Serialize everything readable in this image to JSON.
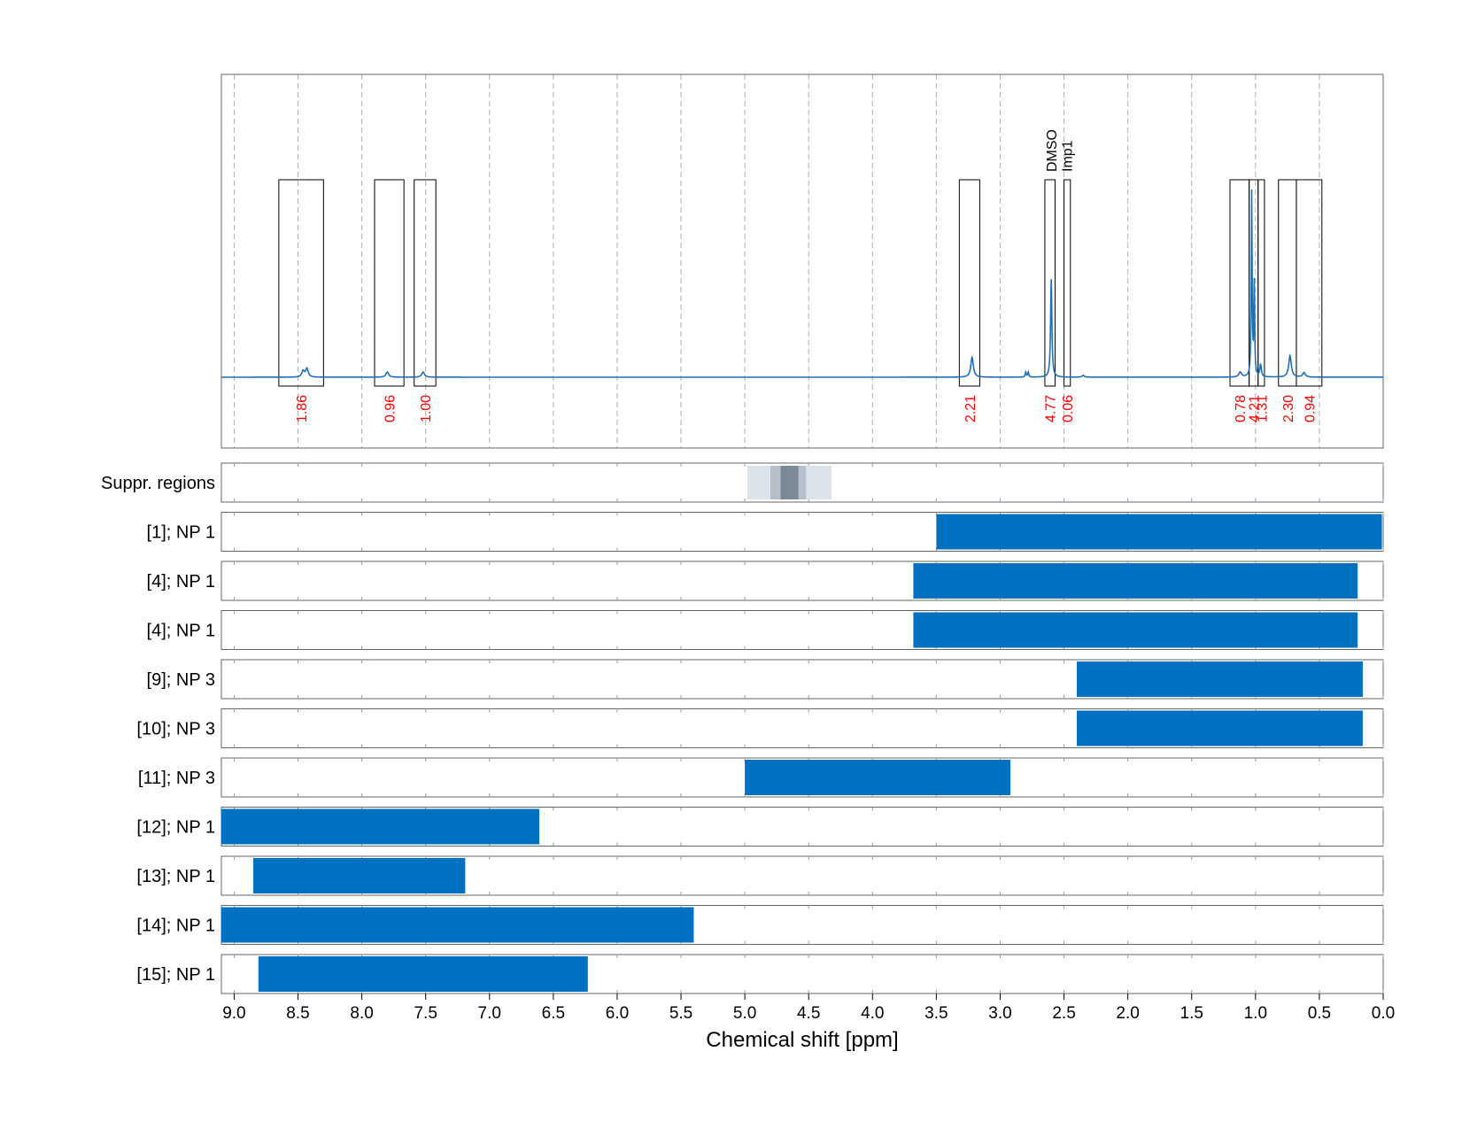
{
  "colors": {
    "spectrum": "#1f6fb4",
    "bar": "#0070c0",
    "integral_label": "#ff0000",
    "frame": "#666666",
    "grid": "#b0b0b0",
    "suppr_light": "#dde3ea",
    "suppr_mid": "#b5c0cb",
    "suppr_dark": "#7b8a96"
  },
  "chart_data": {
    "type": "nmr_spectrum_with_ranges",
    "xlabel": "Chemical shift [ppm]",
    "xlim": [
      9.1,
      0.0
    ],
    "x_ticks": [
      {
        "value": 9.0,
        "label": "9.0"
      },
      {
        "value": 8.5,
        "label": "8.5"
      },
      {
        "value": 8.0,
        "label": "8.0"
      },
      {
        "value": 7.5,
        "label": "7.5"
      },
      {
        "value": 7.0,
        "label": "7.0"
      },
      {
        "value": 6.5,
        "label": "6.5"
      },
      {
        "value": 6.0,
        "label": "6.0"
      },
      {
        "value": 5.5,
        "label": "5.5"
      },
      {
        "value": 5.0,
        "label": "5.0"
      },
      {
        "value": 4.5,
        "label": "4.5"
      },
      {
        "value": 4.0,
        "label": "4.0"
      },
      {
        "value": 3.5,
        "label": "3.5"
      },
      {
        "value": 3.0,
        "label": "3.0"
      },
      {
        "value": 2.5,
        "label": "2.5"
      },
      {
        "value": 2.0,
        "label": "2.0"
      },
      {
        "value": 1.5,
        "label": "1.5"
      },
      {
        "value": 1.0,
        "label": "1.0"
      },
      {
        "value": 0.5,
        "label": "0.5"
      },
      {
        "value": 0.0,
        "label": "0.0"
      }
    ],
    "spectrum": {
      "y_range": [
        -0.22,
        1.0
      ],
      "peaks": [
        {
          "ppm": 8.46,
          "height": 0.02,
          "width": 0.012
        },
        {
          "ppm": 8.43,
          "height": 0.028,
          "width": 0.012
        },
        {
          "ppm": 7.8,
          "height": 0.017,
          "width": 0.013
        },
        {
          "ppm": 7.52,
          "height": 0.017,
          "width": 0.013
        },
        {
          "ppm": 3.22,
          "height": 0.065,
          "width": 0.012
        },
        {
          "ppm": 2.8,
          "height": 0.016,
          "width": 0.005
        },
        {
          "ppm": 2.78,
          "height": 0.016,
          "width": 0.005
        },
        {
          "ppm": 2.6,
          "height": 0.32,
          "width": 0.006
        },
        {
          "ppm": 2.35,
          "height": 0.006,
          "width": 0.01
        },
        {
          "ppm": 1.12,
          "height": 0.016,
          "width": 0.012
        },
        {
          "ppm": 1.03,
          "height": 0.6,
          "width": 0.004
        },
        {
          "ppm": 1.01,
          "height": 0.3,
          "width": 0.004
        },
        {
          "ppm": 0.96,
          "height": 0.04,
          "width": 0.007
        },
        {
          "ppm": 0.73,
          "height": 0.07,
          "width": 0.012
        },
        {
          "ppm": 0.62,
          "height": 0.015,
          "width": 0.012
        }
      ]
    },
    "integration_regions": [
      {
        "from": 8.65,
        "to": 8.3,
        "value": "1.86"
      },
      {
        "from": 7.9,
        "to": 7.67,
        "value": "0.96"
      },
      {
        "from": 7.59,
        "to": 7.42,
        "value": "1.00"
      },
      {
        "from": 3.32,
        "to": 3.16,
        "value": "2.21"
      },
      {
        "from": 2.65,
        "to": 2.57,
        "value": "4.77"
      },
      {
        "from": 2.5,
        "to": 2.45,
        "value": "0.06"
      },
      {
        "from": 1.2,
        "to": 1.05,
        "value": "0.78"
      },
      {
        "from": 1.05,
        "to": 0.98,
        "value": "4.21"
      },
      {
        "from": 0.98,
        "to": 0.93,
        "value": "1.31"
      },
      {
        "from": 0.82,
        "to": 0.68,
        "value": "2.30"
      },
      {
        "from": 0.68,
        "to": 0.48,
        "value": "0.94"
      }
    ],
    "annotations": [
      {
        "text": "DMSO",
        "ppm": 2.6
      },
      {
        "text": "Imp1",
        "ppm": 2.48
      }
    ],
    "suppressed_regions": {
      "label": "Suppr. regions",
      "bands": [
        {
          "from": 4.98,
          "to": 4.32,
          "shade": "light"
        },
        {
          "from": 4.8,
          "to": 4.52,
          "shade": "mid"
        },
        {
          "from": 4.72,
          "to": 4.58,
          "shade": "dark"
        }
      ]
    },
    "range_rows": [
      {
        "label": "[1]; NP 1",
        "from": 3.5,
        "to": 0.01
      },
      {
        "label": "[4]; NP 1",
        "from": 3.68,
        "to": 0.2
      },
      {
        "label": "[4]; NP 1",
        "from": 3.68,
        "to": 0.2
      },
      {
        "label": "[9]; NP 3",
        "from": 2.4,
        "to": 0.16
      },
      {
        "label": "[10]; NP 3",
        "from": 2.4,
        "to": 0.16
      },
      {
        "label": "[11]; NP 3",
        "from": 5.0,
        "to": 2.92
      },
      {
        "label": "[12]; NP 1",
        "from": 9.1,
        "to": 6.61
      },
      {
        "label": "[13]; NP 1",
        "from": 8.85,
        "to": 7.19
      },
      {
        "label": "[14]; NP 1",
        "from": 9.1,
        "to": 5.4
      },
      {
        "label": "[15]; NP 1",
        "from": 8.81,
        "to": 6.23
      }
    ]
  }
}
